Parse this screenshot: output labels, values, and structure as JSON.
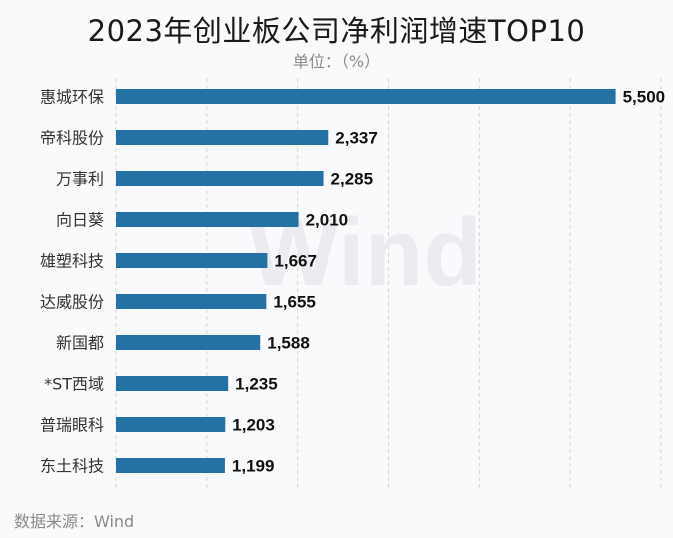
{
  "title": "2023年创业板公司净利润增速TOP10",
  "unit_label": "单位：（%）",
  "source": "数据来源：Wind",
  "watermark": "Wind",
  "colors": {
    "bar": "#2471a3",
    "grid": "#d6d6d6",
    "value": "#111111",
    "category": "#333333",
    "watermark": "#ececf0"
  },
  "chart_data": {
    "type": "bar",
    "orientation": "horizontal",
    "categories": [
      "惠城环保",
      "帝科股份",
      "万事利",
      "向日葵",
      "雄塑科技",
      "达威股份",
      "新国都",
      "*ST西域",
      "普瑞眼科",
      "东土科技"
    ],
    "values": [
      5500,
      2337,
      2285,
      2010,
      1667,
      1655,
      1588,
      1235,
      1203,
      1199
    ],
    "value_labels": [
      "5,500",
      "2,337",
      "2,285",
      "2,010",
      "1,667",
      "1,655",
      "1,588",
      "1,235",
      "1,203",
      "1,199"
    ],
    "xlim": [
      0,
      6000
    ],
    "grid": true
  }
}
